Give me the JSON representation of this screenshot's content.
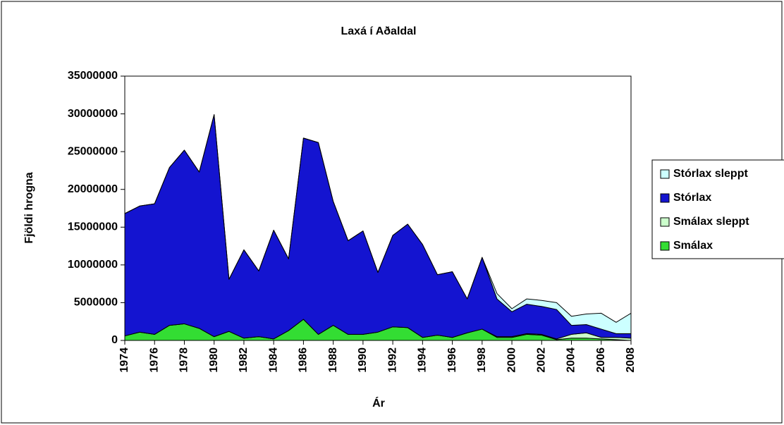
{
  "chart_data": {
    "type": "stacked_area",
    "title": "Laxá í Aðaldal",
    "x_label": "Ár",
    "y_label": "Fjöldi hrogna",
    "x": [
      1974,
      1975,
      1976,
      1977,
      1978,
      1979,
      1980,
      1981,
      1982,
      1983,
      1984,
      1985,
      1986,
      1987,
      1988,
      1989,
      1990,
      1991,
      1992,
      1993,
      1994,
      1995,
      1996,
      1997,
      1998,
      1999,
      2000,
      2001,
      2002,
      2003,
      2004,
      2005,
      2006,
      2007,
      2008
    ],
    "xlim": [
      1974,
      2008
    ],
    "xticks": [
      1974,
      1976,
      1978,
      1980,
      1982,
      1984,
      1986,
      1988,
      1990,
      1992,
      1994,
      1996,
      1998,
      2000,
      2002,
      2004,
      2006,
      2008
    ],
    "ylim": [
      0,
      35000000
    ],
    "yticks": [
      0,
      5000000,
      10000000,
      15000000,
      20000000,
      25000000,
      30000000,
      35000000
    ],
    "series": [
      {
        "name": "Smálax",
        "color": "#33dd33",
        "values": [
          600000,
          1100000,
          800000,
          2000000,
          2200000,
          1600000,
          500000,
          1200000,
          300000,
          500000,
          200000,
          1300000,
          2800000,
          800000,
          2000000,
          800000,
          800000,
          1100000,
          1800000,
          1700000,
          400000,
          700000,
          400000,
          1000000,
          1500000,
          400000,
          400000,
          800000,
          700000,
          100000,
          300000,
          300000,
          200000,
          100000,
          0
        ]
      },
      {
        "name": "Smálax sleppt",
        "color": "#ccffcc",
        "values": [
          0,
          0,
          0,
          0,
          0,
          0,
          0,
          0,
          0,
          0,
          0,
          0,
          0,
          0,
          0,
          0,
          0,
          0,
          0,
          0,
          0,
          0,
          0,
          0,
          0,
          100000,
          100000,
          100000,
          100000,
          100000,
          500000,
          700000,
          200000,
          300000,
          300000
        ]
      },
      {
        "name": "Stórlax",
        "color": "#1414d0",
        "values": [
          16200000,
          16700000,
          17300000,
          20900000,
          23000000,
          20700000,
          29400000,
          6900000,
          11700000,
          8700000,
          14400000,
          9500000,
          24000000,
          25400000,
          16400000,
          12400000,
          13700000,
          7900000,
          12100000,
          13700000,
          12300000,
          8000000,
          8700000,
          4500000,
          9500000,
          5000000,
          3300000,
          3900000,
          3700000,
          3900000,
          1200000,
          1100000,
          1100000,
          500000,
          600000
        ]
      },
      {
        "name": "Stórlax sleppt",
        "color": "#ccffff",
        "values": [
          0,
          0,
          0,
          0,
          0,
          0,
          0,
          0,
          0,
          0,
          0,
          0,
          0,
          0,
          0,
          0,
          0,
          0,
          0,
          0,
          0,
          0,
          0,
          0,
          0,
          700000,
          400000,
          700000,
          800000,
          900000,
          1200000,
          1400000,
          2100000,
          1500000,
          2700000
        ]
      }
    ]
  }
}
